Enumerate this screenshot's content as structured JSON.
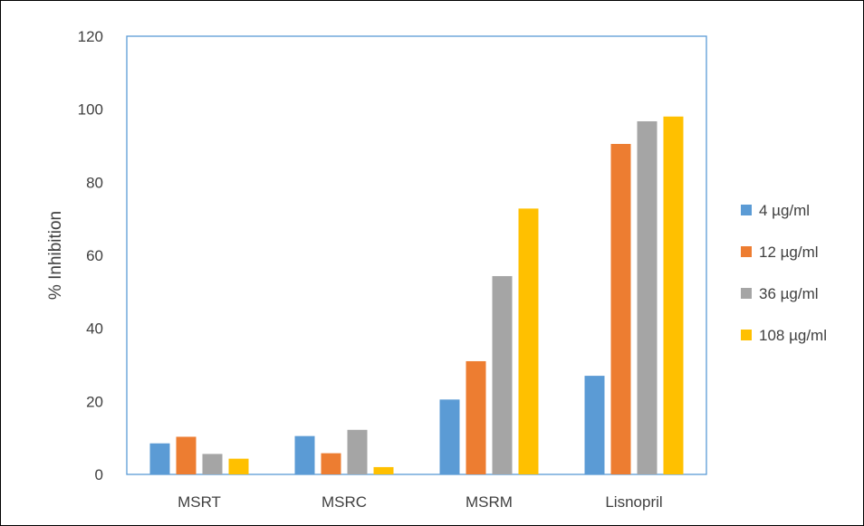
{
  "chart_data": {
    "type": "bar",
    "title": "",
    "xlabel": "",
    "ylabel": "% Inhibition",
    "ylim": [
      0,
      120
    ],
    "yticks": [
      0,
      20,
      40,
      60,
      80,
      100,
      120
    ],
    "grid": false,
    "legend_position": "right",
    "categories": [
      "MSRT",
      "MSRC",
      "MSRM",
      "Lisnopril"
    ],
    "series": [
      {
        "name": "4 µg/ml",
        "color": "#5b9bd5",
        "values": [
          8.5,
          10.5,
          20.5,
          27
        ]
      },
      {
        "name": "12 µg/ml",
        "color": "#ed7d31",
        "values": [
          10.3,
          5.8,
          31,
          90.5
        ]
      },
      {
        "name": "36 µg/ml",
        "color": "#a5a5a5",
        "values": [
          5.6,
          12.2,
          54.3,
          96.7
        ]
      },
      {
        "name": "108 µg/ml",
        "color": "#ffc000",
        "values": [
          4.3,
          2,
          72.8,
          98
        ]
      }
    ]
  }
}
